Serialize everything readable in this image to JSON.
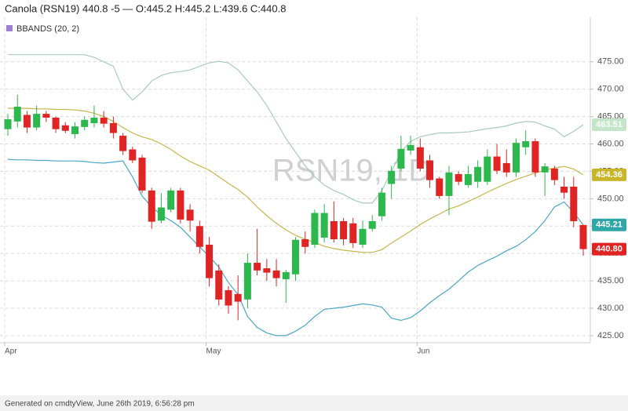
{
  "chart_data": {
    "type": "candlestick",
    "title": "Canola (RSN19) 440.8 -5 — O:445.2 H:445.2 L:439.6 C:440.8",
    "legend": "BBANDS (20, 2)",
    "legend_color": "#9b7fd4",
    "watermark": "RSN19, 1D",
    "up_color": "#2db84d",
    "down_color": "#e02424",
    "ylim": [
      423.7,
      482.7
    ],
    "yticks": [
      {
        "value": 425,
        "label": "425.00"
      },
      {
        "value": 430,
        "label": "430.00"
      },
      {
        "value": 435,
        "label": "435.00"
      },
      {
        "value": 440,
        "label": "440.00"
      },
      {
        "value": 445,
        "label": "445.00"
      },
      {
        "value": 450,
        "label": "450.00"
      },
      {
        "value": 455,
        "label": "455.00"
      },
      {
        "value": 460,
        "label": "460.00"
      },
      {
        "value": 465,
        "label": "465.00"
      },
      {
        "value": 470,
        "label": "470.00"
      },
      {
        "value": 475,
        "label": "475.00"
      }
    ],
    "grid": true,
    "categories": [
      "Apr",
      null,
      null,
      null,
      null,
      null,
      null,
      null,
      null,
      null,
      null,
      null,
      null,
      null,
      null,
      null,
      null,
      null,
      null,
      null,
      null,
      "May",
      null,
      null,
      null,
      null,
      null,
      null,
      null,
      null,
      null,
      null,
      null,
      null,
      null,
      null,
      null,
      null,
      null,
      null,
      null,
      null,
      null,
      "Jun",
      null,
      null,
      null,
      null,
      null,
      null,
      null,
      null,
      null,
      null,
      null,
      null,
      null,
      null,
      null,
      null,
      null
    ],
    "open": [
      462.7,
      464.1,
      465.3,
      463,
      465.5,
      464.8,
      463.4,
      461.8,
      463.1,
      463.8,
      464.8,
      463.8,
      461.5,
      459,
      457.5,
      451.5,
      446,
      448,
      451.5,
      448,
      445,
      441.6,
      436.9,
      433.3,
      432.6,
      431.6,
      438.3,
      437.3,
      436.9,
      435.3,
      436.2,
      442.6,
      441.6,
      442.9,
      445.9,
      445.9,
      445.5,
      441.6,
      444.5,
      446.8,
      452.7,
      455.5,
      458.8,
      459.4,
      457,
      453.7,
      450.5,
      454.5,
      452.5,
      453.1,
      453.1,
      457.7,
      456.5,
      454.8,
      459.4,
      460.5,
      454.8,
      455.5,
      452.2,
      452.2,
      445.2
    ],
    "high": [
      465.5,
      469,
      466,
      467,
      466,
      465,
      464,
      464,
      465,
      467,
      466,
      465,
      462,
      459.5,
      458,
      452,
      451,
      452,
      452,
      449,
      446,
      443,
      438,
      434,
      436,
      440,
      444.5,
      439,
      439,
      437,
      443,
      444,
      448,
      449,
      449.5,
      446.5,
      446.5,
      446,
      447,
      452,
      456,
      461.5,
      461.5,
      461,
      458,
      454,
      456,
      455,
      456,
      457,
      459,
      460,
      459,
      461,
      462.5,
      461,
      456.5,
      456,
      454,
      454,
      445.2
    ],
    "low": [
      461.5,
      463,
      462,
      462.5,
      464,
      462,
      462,
      461,
      462.5,
      463,
      463,
      461,
      458,
      456.5,
      451,
      444.5,
      445.5,
      447.5,
      445.5,
      444,
      440,
      434,
      430.5,
      429,
      427.8,
      430,
      436,
      435,
      434,
      431,
      435,
      440,
      441,
      442,
      442,
      441.5,
      441,
      441,
      444,
      446,
      450,
      455,
      458,
      455,
      452,
      450,
      447,
      452.5,
      452,
      452,
      452.5,
      454.5,
      454,
      454,
      458,
      454,
      450.5,
      452.5,
      450,
      444.8,
      439.6
    ],
    "close": [
      464.5,
      466.8,
      463,
      465.5,
      464.8,
      462.7,
      462.4,
      463.2,
      464.4,
      464.8,
      463.7,
      462,
      458.7,
      457,
      451.5,
      445.8,
      448.4,
      451.5,
      446.2,
      446,
      441.2,
      435.5,
      431.6,
      430.5,
      431.2,
      438.3,
      436.9,
      436.5,
      435.5,
      436.6,
      442.5,
      441.2,
      447.4,
      447.4,
      442.6,
      442.6,
      441.9,
      444.5,
      445.9,
      451.1,
      455.1,
      459.1,
      459.8,
      455.5,
      453.4,
      450.5,
      454.8,
      453.1,
      454.5,
      455.8,
      457.7,
      455.1,
      454.8,
      460.2,
      460.5,
      454.8,
      455.9,
      453.4,
      451.1,
      445.9,
      440.8
    ],
    "last_close": {
      "value": 440.8,
      "label": "440.80"
    },
    "bands": [
      {
        "color": "#a9cbbf",
        "tag_color": "#c4e6c8",
        "last_label": 463.51,
        "values": [
          476.3,
          476.3,
          476.3,
          476.3,
          476.3,
          476.3,
          476.3,
          476.3,
          476.3,
          475.8,
          475,
          474.2,
          470,
          468,
          469.5,
          471.5,
          472.5,
          473,
          473.2,
          473.5,
          474.2,
          474.8,
          475.1,
          474.8,
          473.5,
          471.5,
          469.5,
          467,
          464,
          461,
          458.5,
          456,
          454,
          452.5,
          451.5,
          450.8,
          449.8,
          449.2,
          449.2,
          451.5,
          455,
          458.5,
          460.5,
          461.3,
          461.7,
          462,
          462,
          462.1,
          462.2,
          462.5,
          462.8,
          463,
          463.3,
          463.8,
          464.1,
          464,
          463.3,
          462.7,
          461.3,
          462.3,
          463.51
        ]
      },
      {
        "color": "#c8b54a",
        "tag_color": "#c9b52a",
        "last_label": 454.36,
        "values": [
          466.5,
          466.5,
          466.5,
          466.4,
          466.4,
          466.3,
          466.3,
          466.2,
          466,
          465.6,
          465,
          464.1,
          463,
          462,
          461.3,
          460.8,
          460,
          459,
          457.8,
          456.8,
          456,
          455.2,
          454,
          452.8,
          451.7,
          450.3,
          448.5,
          446.9,
          445.5,
          444.3,
          443.3,
          442.6,
          442,
          441.3,
          440.9,
          440.6,
          440.4,
          440.2,
          440.2,
          440.7,
          441.9,
          443,
          444.1,
          445.3,
          446.3,
          447.2,
          448.1,
          448.7,
          449.5,
          450.3,
          451.2,
          452,
          452.8,
          453.5,
          454.1,
          454.7,
          455.2,
          455.6,
          455.9,
          455.4,
          454.36
        ]
      },
      {
        "color": "#4ba6c6",
        "tag_color": "#2fa6a8",
        "last_label": 445.21,
        "values": [
          457.2,
          457.1,
          457.1,
          457,
          457,
          456.9,
          456.9,
          456.9,
          456.8,
          456.6,
          456.5,
          456.7,
          456.9,
          454,
          450.5,
          448.5,
          447,
          446,
          444.8,
          443,
          441.2,
          439.5,
          437.5,
          434.7,
          432.5,
          428.5,
          426.5,
          425.5,
          425,
          425,
          425.8,
          426.9,
          428.5,
          429.8,
          430,
          430.2,
          430.5,
          430.8,
          430.6,
          430.2,
          428.2,
          427.8,
          428.3,
          429.5,
          431,
          432.3,
          433.5,
          435,
          436.6,
          437.8,
          438.7,
          439.5,
          440.5,
          441.3,
          442.5,
          444,
          446,
          448.5,
          449.4,
          447.5,
          445.21
        ]
      }
    ]
  },
  "footer": "Generated on cmdtyView, June 26th 2019, 6:56:28 pm"
}
